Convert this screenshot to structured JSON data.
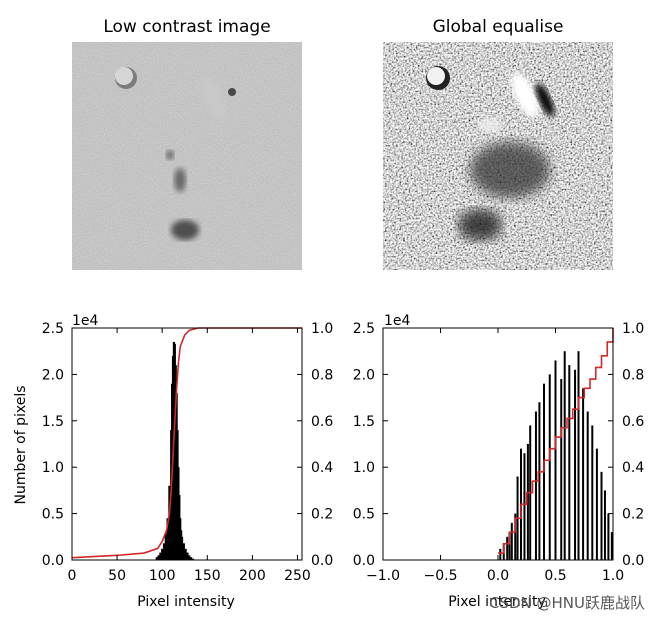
{
  "panels": {
    "left_image": {
      "title": "Low contrast image"
    },
    "right_image": {
      "title": "Global equalise"
    }
  },
  "watermark": "CSDN @HNU跃鹿战队",
  "chart_data": [
    {
      "type": "bar",
      "name": "low-contrast-histogram",
      "xlabel": "Pixel intensity",
      "ylabel": "Number of pixels",
      "xlim": [
        0,
        255
      ],
      "ylim": [
        0,
        25000
      ],
      "y_multiplier_label": "1e4",
      "xticks": [
        0,
        50,
        100,
        150,
        200,
        250
      ],
      "yticks": [
        0,
        5000,
        10000,
        15000,
        20000,
        25000
      ],
      "ytick_labels": [
        "0.0",
        "0.5",
        "1.0",
        "1.5",
        "2.0",
        "2.5"
      ],
      "y2lim": [
        0,
        1
      ],
      "y2ticks": [
        "0.0",
        "0.2",
        "0.4",
        "0.6",
        "0.8",
        "1.0"
      ],
      "histogram": {
        "x": [
          94,
          96,
          98,
          100,
          102,
          104,
          106,
          108,
          110,
          111,
          112,
          113,
          114,
          115,
          116,
          117,
          118,
          119,
          120,
          121,
          122,
          124,
          126,
          128,
          130,
          132,
          134
        ],
        "values": [
          300,
          500,
          800,
          1200,
          1800,
          2800,
          4500,
          8000,
          14000,
          19000,
          22000,
          23500,
          23300,
          21000,
          18000,
          14000,
          10000,
          7000,
          4500,
          3200,
          2500,
          1800,
          1200,
          800,
          500,
          300,
          150
        ]
      },
      "cdf": {
        "color": "#d62728",
        "x": [
          0,
          50,
          80,
          95,
          100,
          105,
          108,
          110,
          112,
          114,
          116,
          118,
          120,
          125,
          130,
          140,
          160,
          200,
          255
        ],
        "y": [
          0.01,
          0.02,
          0.03,
          0.05,
          0.08,
          0.13,
          0.2,
          0.3,
          0.45,
          0.6,
          0.74,
          0.85,
          0.92,
          0.97,
          0.99,
          1.0,
          1.0,
          1.0,
          1.0
        ]
      }
    },
    {
      "type": "bar",
      "name": "equalised-histogram",
      "xlabel": "Pixel intensity",
      "ylabel": "",
      "xlim": [
        -1.0,
        1.0
      ],
      "ylim": [
        0,
        25000
      ],
      "y_multiplier_label": "1e4",
      "xticks": [
        -1.0,
        -0.5,
        0.0,
        0.5,
        1.0
      ],
      "xtick_labels": [
        "−1.0",
        "−0.5",
        "0.0",
        "0.5",
        "1.0"
      ],
      "yticks": [
        0,
        5000,
        10000,
        15000,
        20000,
        25000
      ],
      "ytick_labels": [
        "0.0",
        "0.5",
        "1.0",
        "1.5",
        "2.0",
        "2.5"
      ],
      "y2lim": [
        0,
        1
      ],
      "y2ticks": [
        "0.0",
        "0.2",
        "0.4",
        "0.6",
        "0.8",
        "1.0"
      ],
      "histogram": {
        "x": [
          0.02,
          0.05,
          0.08,
          0.1,
          0.12,
          0.15,
          0.17,
          0.2,
          0.23,
          0.26,
          0.28,
          0.33,
          0.36,
          0.4,
          0.45,
          0.5,
          0.55,
          0.58,
          0.62,
          0.67,
          0.7,
          0.74,
          0.78,
          0.82,
          0.86,
          0.9,
          0.93,
          0.96,
          0.99
        ],
        "values": [
          1200,
          1800,
          2500,
          3000,
          4000,
          5000,
          9000,
          12000,
          11500,
          12500,
          14500,
          16000,
          17000,
          19000,
          20000,
          21500,
          19500,
          22500,
          21000,
          20500,
          22500,
          18500,
          16000,
          14500,
          12000,
          9500,
          7500,
          5000,
          3000
        ]
      },
      "cdf": {
        "color": "#d62728",
        "x": [
          0.0,
          0.05,
          0.1,
          0.15,
          0.2,
          0.25,
          0.3,
          0.35,
          0.4,
          0.45,
          0.5,
          0.55,
          0.6,
          0.65,
          0.7,
          0.75,
          0.8,
          0.85,
          0.9,
          0.95,
          1.0
        ],
        "y": [
          0.03,
          0.07,
          0.12,
          0.18,
          0.24,
          0.29,
          0.34,
          0.38,
          0.43,
          0.48,
          0.53,
          0.57,
          0.61,
          0.65,
          0.7,
          0.74,
          0.78,
          0.83,
          0.88,
          0.94,
          1.0
        ]
      }
    }
  ]
}
